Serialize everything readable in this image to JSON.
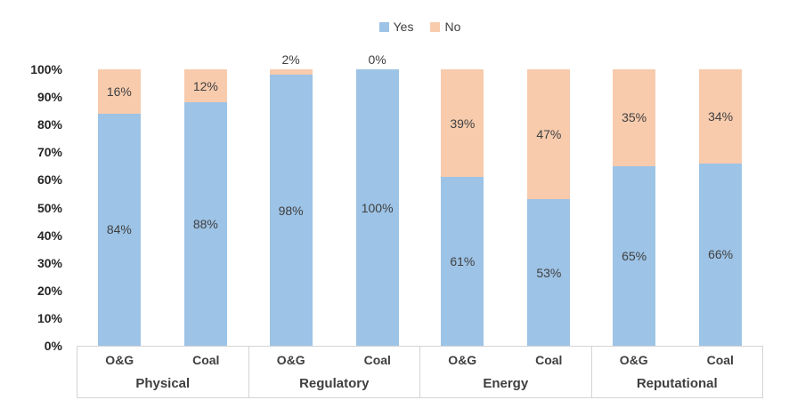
{
  "chart_data": {
    "type": "bar",
    "subtype": "stacked-percent",
    "title": "",
    "categories": [
      "Physical",
      "Regulatory",
      "Energy",
      "Reputational"
    ],
    "sub_categories": [
      "O&G",
      "Coal"
    ],
    "series": [
      {
        "name": "Yes",
        "color": "#9dc3e6",
        "values": [
          84,
          88,
          98,
          100,
          61,
          53,
          65,
          66
        ]
      },
      {
        "name": "No",
        "color": "#f8cbad",
        "values": [
          16,
          12,
          2,
          0,
          39,
          47,
          35,
          34
        ]
      }
    ],
    "data_labels": {
      "Yes": [
        "84%",
        "88%",
        "98%",
        "100%",
        "61%",
        "53%",
        "65%",
        "66%"
      ],
      "No": [
        "16%",
        "12%",
        "2%",
        "0%",
        "39%",
        "47%",
        "35%",
        "34%"
      ]
    },
    "y_axis": {
      "min": 0,
      "max": 100,
      "tick_labels": [
        "0%",
        "10%",
        "20%",
        "30%",
        "40%",
        "50%",
        "60%",
        "70%",
        "80%",
        "90%",
        "100%"
      ]
    },
    "grid": false,
    "legend_position": "top-center",
    "legend_labels": [
      "Yes",
      "No"
    ]
  }
}
